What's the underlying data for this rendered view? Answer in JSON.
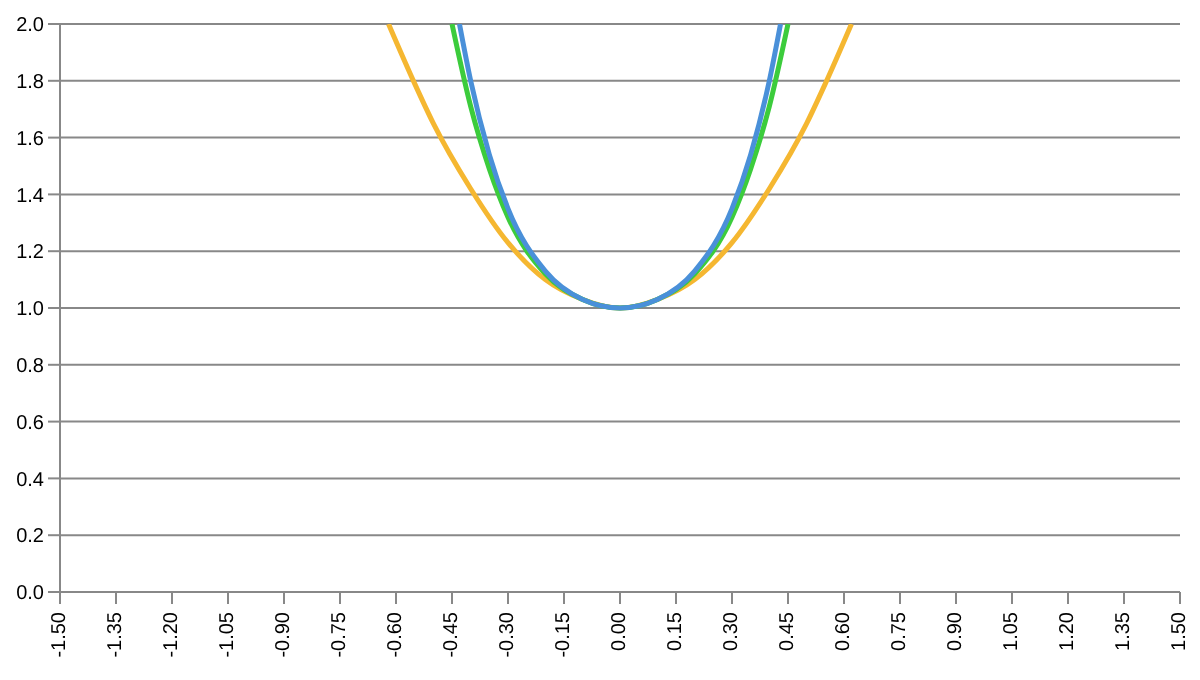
{
  "chart_data": {
    "type": "line",
    "xlim": [
      -1.5,
      1.5
    ],
    "ylim": [
      0,
      2
    ],
    "xticks": [
      {
        "value": -1.5,
        "label": "-1.50"
      },
      {
        "value": -1.35,
        "label": "-1.35"
      },
      {
        "value": -1.2,
        "label": "-1.20"
      },
      {
        "value": -1.05,
        "label": "-1.05"
      },
      {
        "value": -0.9,
        "label": "-0.90"
      },
      {
        "value": -0.75,
        "label": "-0.75"
      },
      {
        "value": -0.6,
        "label": "-0.60"
      },
      {
        "value": -0.45,
        "label": "-0.45"
      },
      {
        "value": -0.3,
        "label": "-0.30"
      },
      {
        "value": -0.15,
        "label": "-0.15"
      },
      {
        "value": 0,
        "label": "0.00"
      },
      {
        "value": 0.15,
        "label": "0.15"
      },
      {
        "value": 0.3,
        "label": "0.30"
      },
      {
        "value": 0.45,
        "label": "0.45"
      },
      {
        "value": 0.6,
        "label": "0.60"
      },
      {
        "value": 0.75,
        "label": "0.75"
      },
      {
        "value": 0.9,
        "label": "0.90"
      },
      {
        "value": 1.05,
        "label": "1.05"
      },
      {
        "value": 1.2,
        "label": "1.20"
      },
      {
        "value": 1.35,
        "label": "1.35"
      },
      {
        "value": 1.5,
        "label": "1.50"
      }
    ],
    "yticks": [
      {
        "value": 0,
        "label": "0.0"
      },
      {
        "value": 0.2,
        "label": "0.2"
      },
      {
        "value": 0.4,
        "label": "0.4"
      },
      {
        "value": 0.6,
        "label": "0.6"
      },
      {
        "value": 0.8,
        "label": "0.8"
      },
      {
        "value": 1,
        "label": "1.0"
      },
      {
        "value": 1.2,
        "label": "1.2"
      },
      {
        "value": 1.4,
        "label": "1.4"
      },
      {
        "value": 1.6,
        "label": "1.6"
      },
      {
        "value": 1.8,
        "label": "1.8"
      },
      {
        "value": 2,
        "label": "2.0"
      }
    ],
    "grid": "y",
    "marker": "none",
    "line_style": "solid",
    "series": [
      {
        "color": "#f5b731",
        "x": [
          -0.62,
          -0.55,
          -0.5,
          -0.4,
          -0.3,
          -0.2,
          -0.1,
          0,
          0.1,
          0.2,
          0.3,
          0.4,
          0.5,
          0.55,
          0.62
        ],
        "values": [
          2.0,
          1.79,
          1.65,
          1.42,
          1.23,
          1.1,
          1.03,
          1.0,
          1.03,
          1.1,
          1.23,
          1.42,
          1.65,
          1.79,
          2.0
        ]
      },
      {
        "color": "#3ccc3c",
        "x": [
          -0.45,
          -0.4,
          -0.35,
          -0.3,
          -0.2,
          -0.1,
          0,
          0.1,
          0.2,
          0.3,
          0.35,
          0.4,
          0.45
        ],
        "values": [
          2.0,
          1.71,
          1.49,
          1.32,
          1.12,
          1.03,
          1.0,
          1.03,
          1.12,
          1.32,
          1.49,
          1.71,
          2.0
        ]
      },
      {
        "color": "#4a90d9",
        "x": [
          -0.43,
          -0.4,
          -0.35,
          -0.3,
          -0.2,
          -0.1,
          0,
          0.1,
          0.2,
          0.3,
          0.35,
          0.4,
          0.43
        ],
        "values": [
          2.0,
          1.8,
          1.54,
          1.35,
          1.13,
          1.03,
          1.0,
          1.03,
          1.13,
          1.35,
          1.54,
          1.8,
          2.0
        ]
      }
    ]
  }
}
